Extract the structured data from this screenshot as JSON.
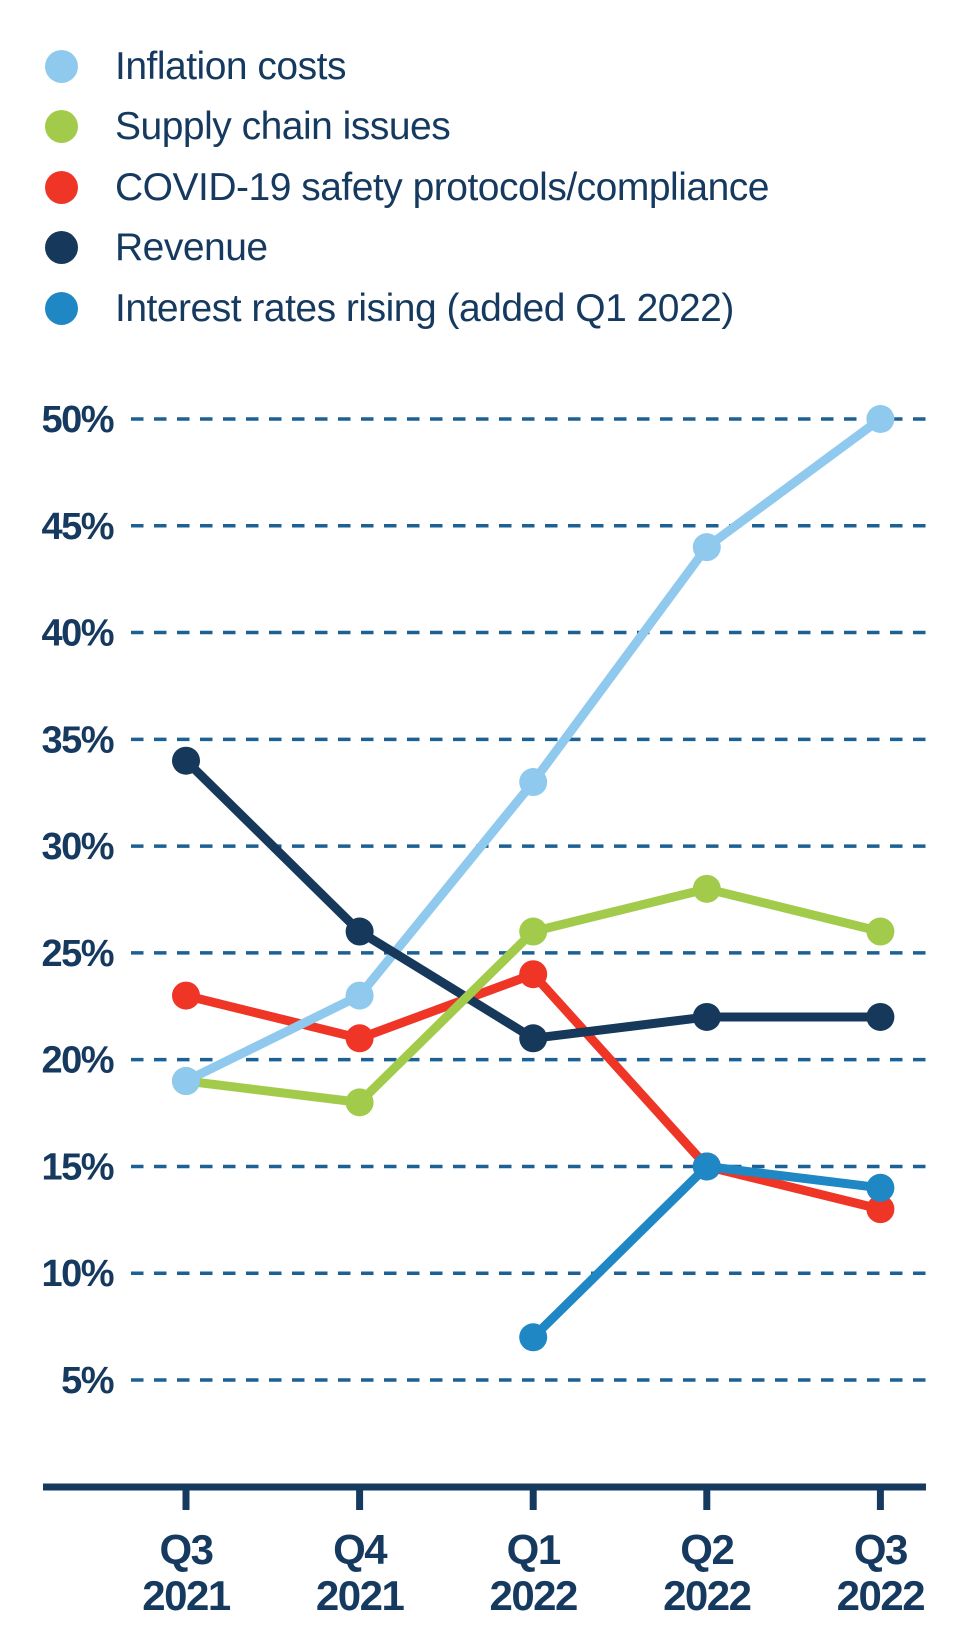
{
  "chart_data": {
    "type": "line",
    "categories": [
      "Q3 2021",
      "Q4 2021",
      "Q1 2022",
      "Q2 2022",
      "Q3 2022"
    ],
    "series": [
      {
        "name": "Inflation costs",
        "color": "#90C9EE",
        "values": [
          19,
          23,
          33,
          44,
          50
        ]
      },
      {
        "name": "Supply chain issues",
        "color": "#A3CB4B",
        "values": [
          19,
          18,
          26,
          28,
          26
        ]
      },
      {
        "name": "COVID-19 safety protocols/compliance",
        "color": "#EE3526",
        "values": [
          23,
          21,
          24,
          15,
          13
        ]
      },
      {
        "name": "Revenue",
        "color": "#16395B",
        "values": [
          34,
          26,
          21,
          22,
          22
        ]
      },
      {
        "name": "Interest rates rising (added Q1 2022)",
        "color": "#1F87C4",
        "values": [
          null,
          null,
          7,
          15,
          14
        ]
      }
    ],
    "y_ticks": [
      "50%",
      "45%",
      "40%",
      "35%",
      "30%",
      "25%",
      "20%",
      "15%",
      "10%",
      "5%"
    ],
    "ylim": [
      5,
      50
    ],
    "unit": "%",
    "grid": "horizontal-dashed",
    "legend_position": "top-left",
    "axis_color": "#163A5F",
    "gridline_color": "#1D6194"
  }
}
